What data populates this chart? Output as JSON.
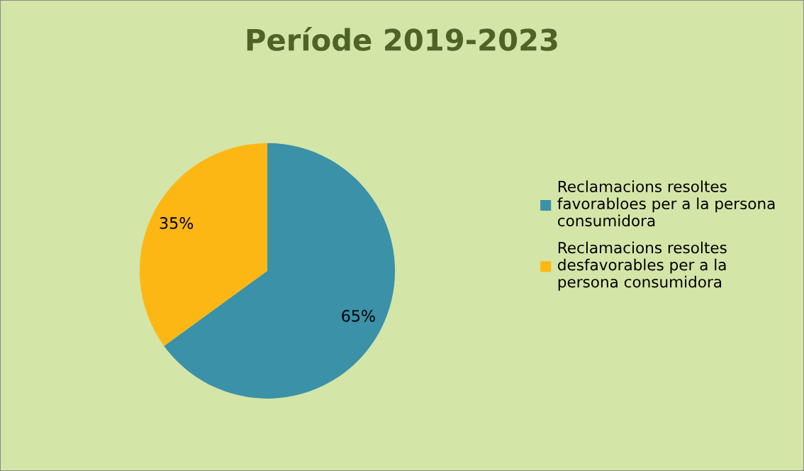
{
  "chart_data": {
    "type": "pie",
    "title": "Període 2019-2023",
    "categories": [
      "Reclamacions resoltes\nfavorabloes per a la persona\nconsumidora",
      "Reclamacions resoltes\ndesfavorables per a la\npersona consumidora"
    ],
    "values": [
      65,
      35
    ],
    "colors": [
      "#3a91a8",
      "#fdb714"
    ],
    "value_labels": [
      "65%",
      "35%"
    ],
    "legend": "right"
  }
}
